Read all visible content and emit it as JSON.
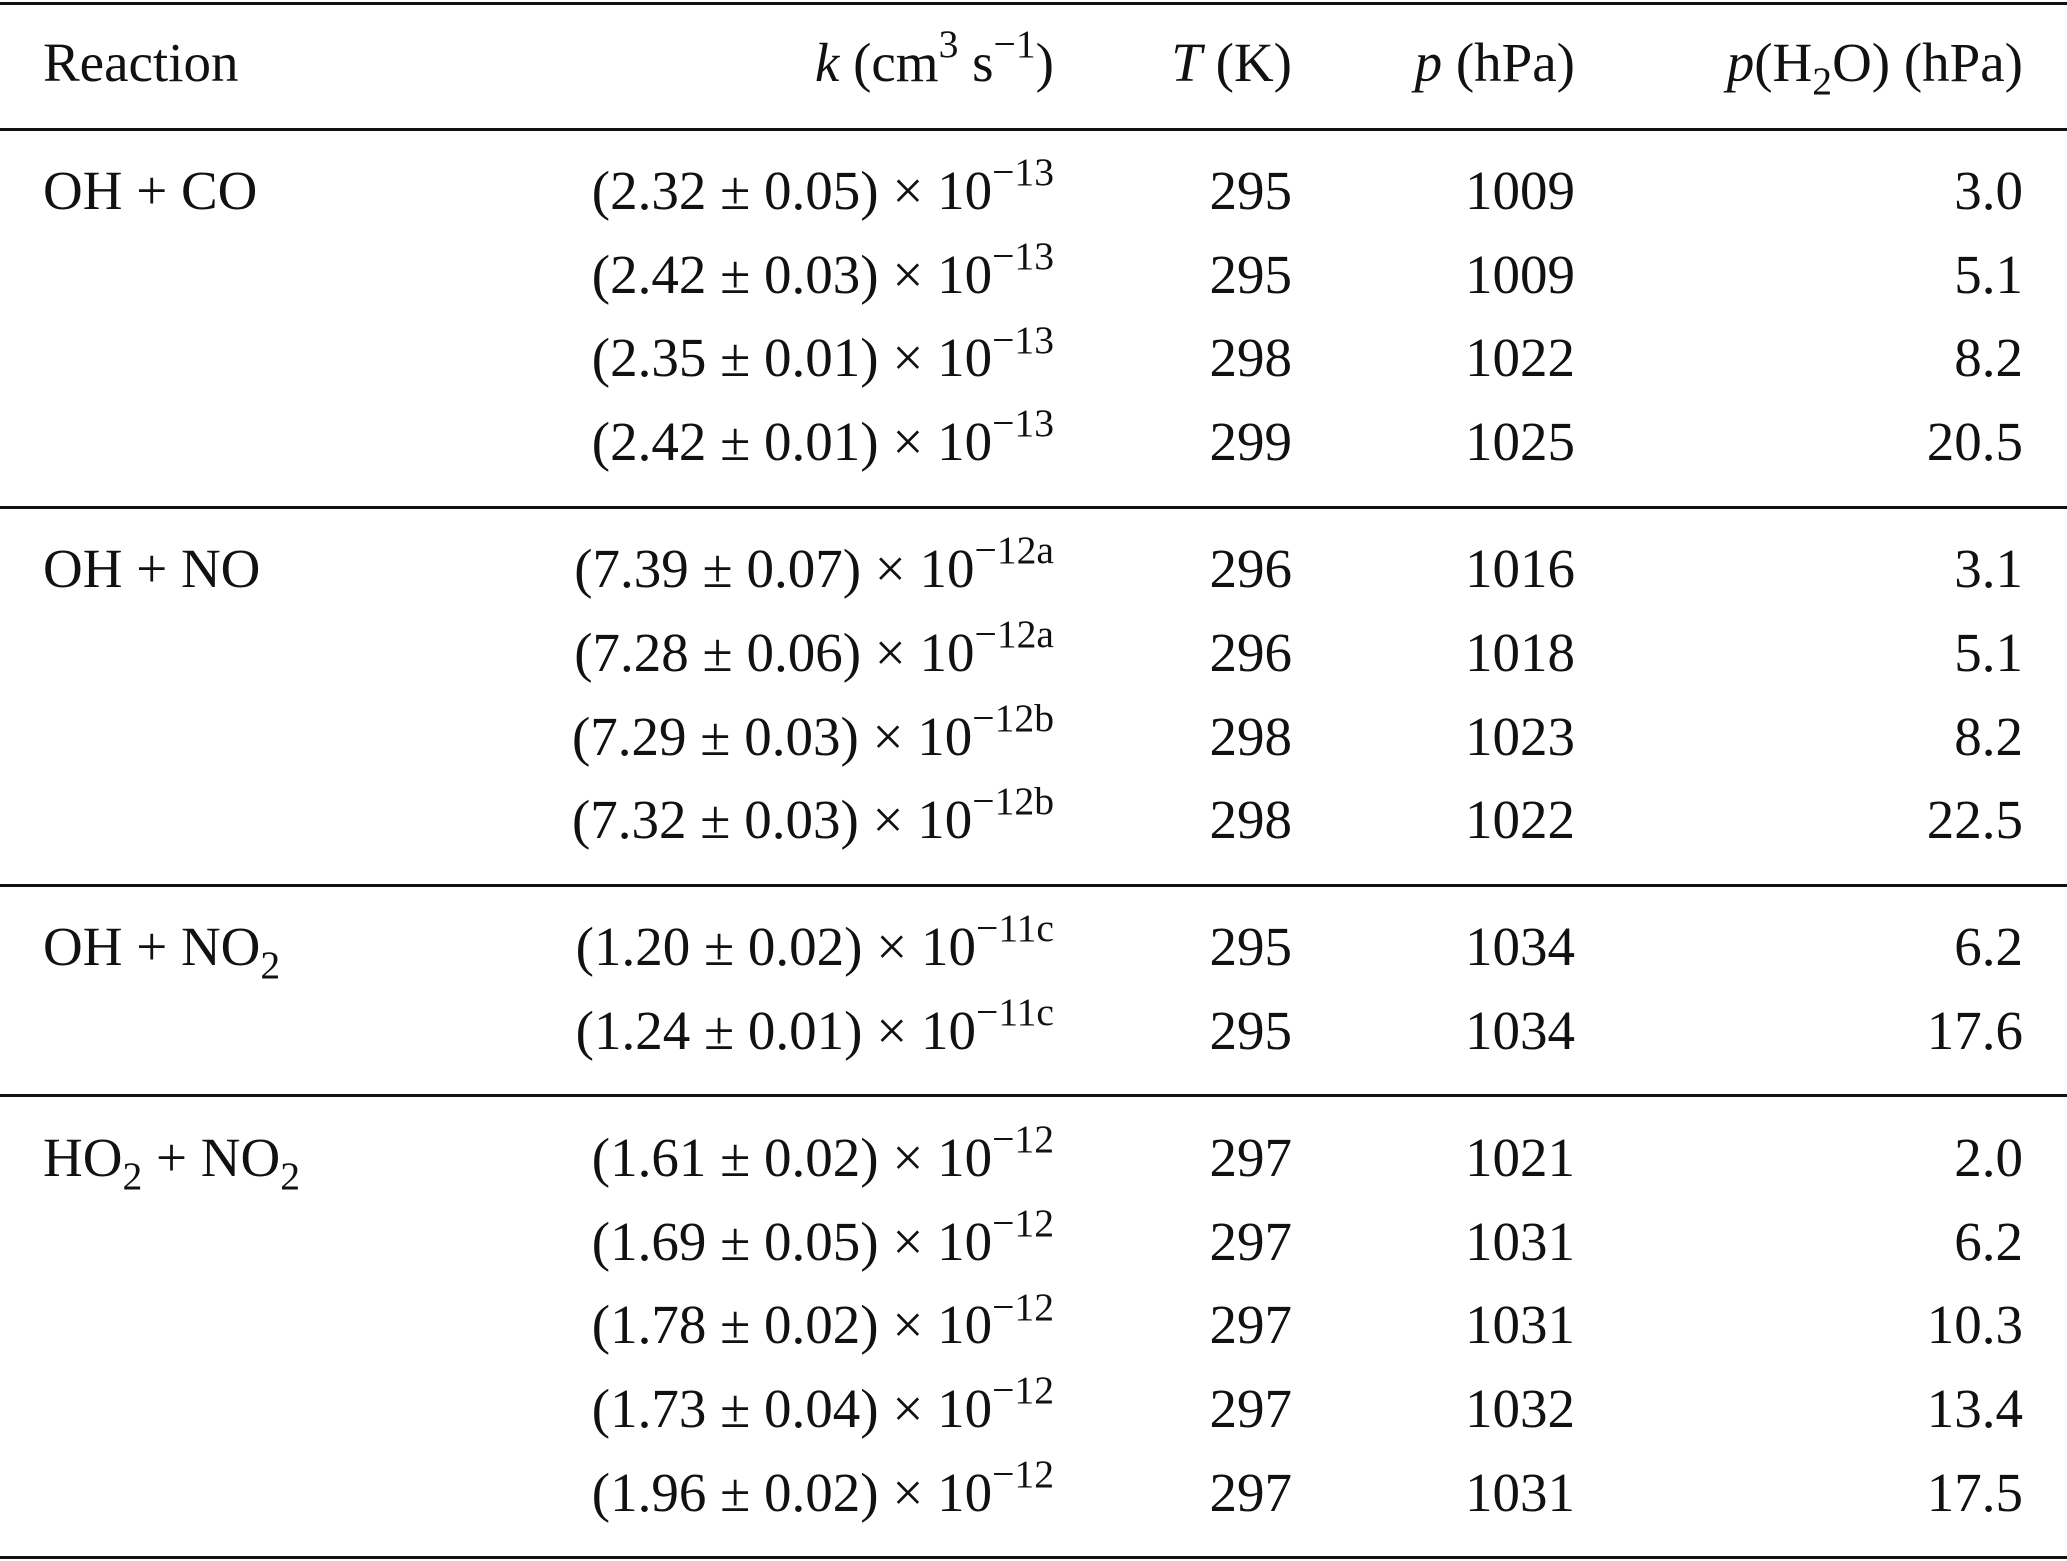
{
  "table": {
    "header": [
      [
        {
          "text": "Reaction"
        }
      ],
      [
        {
          "text": "k",
          "style": "italic"
        },
        {
          "text": " (cm"
        },
        {
          "text": "3",
          "style": "sup"
        },
        {
          "text": " s"
        },
        {
          "text": "−1",
          "style": "sup"
        },
        {
          "text": ")"
        }
      ],
      [
        {
          "text": "T",
          "style": "italic"
        },
        {
          "text": " (K)"
        }
      ],
      [
        {
          "text": "p",
          "style": "italic"
        },
        {
          "text": " (hPa)"
        }
      ],
      [
        {
          "text": "p",
          "style": "italic"
        },
        {
          "text": "(H"
        },
        {
          "text": "2",
          "style": "sub"
        },
        {
          "text": "O) (hPa)"
        }
      ]
    ],
    "groups": [
      {
        "reaction": [
          {
            "text": "OH + CO"
          }
        ],
        "rows": [
          [
            [
              {
                "text": "(2.32 ± 0.05) × 10"
              },
              {
                "text": "−13",
                "style": "sup"
              }
            ],
            "295",
            "1009",
            "3.0"
          ],
          [
            [
              {
                "text": "(2.42 ± 0.03) × 10"
              },
              {
                "text": "−13",
                "style": "sup"
              }
            ],
            "295",
            "1009",
            "5.1"
          ],
          [
            [
              {
                "text": "(2.35 ± 0.01) × 10"
              },
              {
                "text": "−13",
                "style": "sup"
              }
            ],
            "298",
            "1022",
            "8.2"
          ],
          [
            [
              {
                "text": "(2.42 ± 0.01) × 10"
              },
              {
                "text": "−13",
                "style": "sup"
              }
            ],
            "299",
            "1025",
            "20.5"
          ]
        ]
      },
      {
        "reaction": [
          {
            "text": "OH + NO"
          }
        ],
        "rows": [
          [
            [
              {
                "text": "(7.39 ± 0.07) × 10"
              },
              {
                "text": "−12a",
                "style": "sup"
              }
            ],
            "296",
            "1016",
            "3.1"
          ],
          [
            [
              {
                "text": "(7.28 ± 0.06) × 10"
              },
              {
                "text": "−12a",
                "style": "sup"
              }
            ],
            "296",
            "1018",
            "5.1"
          ],
          [
            [
              {
                "text": "(7.29 ± 0.03) × 10"
              },
              {
                "text": "−12b",
                "style": "sup"
              }
            ],
            "298",
            "1023",
            "8.2"
          ],
          [
            [
              {
                "text": "(7.32 ± 0.03) × 10"
              },
              {
                "text": "−12b",
                "style": "sup"
              }
            ],
            "298",
            "1022",
            "22.5"
          ]
        ]
      },
      {
        "reaction": [
          {
            "text": "OH + NO"
          },
          {
            "text": "2",
            "style": "sub"
          }
        ],
        "rows": [
          [
            [
              {
                "text": "(1.20 ± 0.02) × 10"
              },
              {
                "text": "−11c",
                "style": "sup"
              }
            ],
            "295",
            "1034",
            "6.2"
          ],
          [
            [
              {
                "text": "(1.24 ± 0.01) × 10"
              },
              {
                "text": "−11c",
                "style": "sup"
              }
            ],
            "295",
            "1034",
            "17.6"
          ]
        ]
      },
      {
        "reaction": [
          {
            "text": "HO"
          },
          {
            "text": "2",
            "style": "sub"
          },
          {
            "text": " + NO"
          },
          {
            "text": "2",
            "style": "sub"
          }
        ],
        "rows": [
          [
            [
              {
                "text": "(1.61 ± 0.02) × 10"
              },
              {
                "text": "−12",
                "style": "sup"
              }
            ],
            "297",
            "1021",
            "2.0"
          ],
          [
            [
              {
                "text": "(1.69 ± 0.05) × 10"
              },
              {
                "text": "−12",
                "style": "sup"
              }
            ],
            "297",
            "1031",
            "6.2"
          ],
          [
            [
              {
                "text": "(1.78 ± 0.02) × 10"
              },
              {
                "text": "−12",
                "style": "sup"
              }
            ],
            "297",
            "1031",
            "10.3"
          ],
          [
            [
              {
                "text": "(1.73 ± 0.04) × 10"
              },
              {
                "text": "−12",
                "style": "sup"
              }
            ],
            "297",
            "1032",
            "13.4"
          ],
          [
            [
              {
                "text": "(1.96 ± 0.02) × 10"
              },
              {
                "text": "−12",
                "style": "sup"
              }
            ],
            "297",
            "1031",
            "17.5"
          ]
        ]
      }
    ]
  }
}
